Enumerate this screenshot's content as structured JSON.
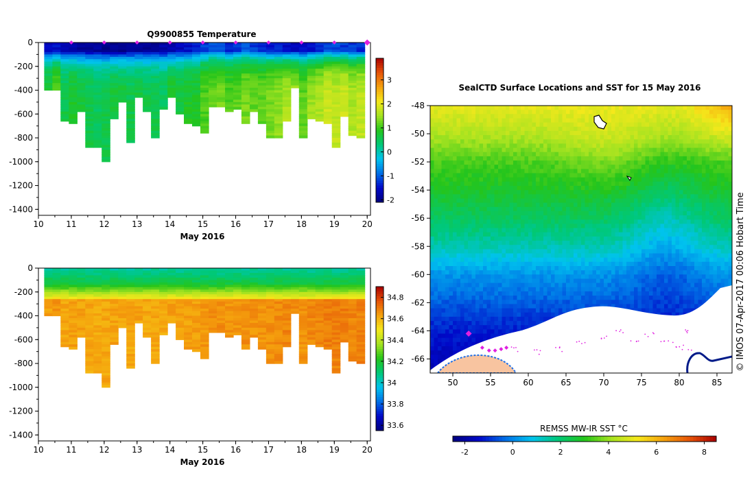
{
  "chart_data": [
    {
      "type": "heatmap",
      "id": "temperature-section",
      "title": "Q9900855  Temperature",
      "xlabel": "May 2016",
      "ylabel": "",
      "xlim": [
        10,
        20.1
      ],
      "ylim": [
        -1450,
        0
      ],
      "xticks": [
        "10",
        "11",
        "12",
        "13",
        "14",
        "15",
        "16",
        "17",
        "18",
        "19",
        "20"
      ],
      "yticks": [
        "0",
        "-200",
        "-400",
        "-600",
        "-800",
        "-1000",
        "-1200",
        "-1400"
      ],
      "profile_markers": [
        11,
        12,
        13,
        14,
        15,
        16,
        17,
        18,
        19,
        20
      ],
      "colorbar": {
        "min": -2.1,
        "max": 3.9,
        "ticks": [
          "3",
          "2",
          "1",
          "0",
          "-1",
          "-2"
        ],
        "colors": [
          "#00007f",
          "#0008c8",
          "#006fe6",
          "#00c3ee",
          "#00c878",
          "#25c51b",
          "#a5e320",
          "#f5e81b",
          "#f5a20d",
          "#e65308",
          "#a80000"
        ]
      },
      "profiles": [
        {
          "t": 10.3,
          "max_depth": 400,
          "surface_value": -1.6,
          "deep_value": 0.8
        },
        {
          "t": 10.55,
          "max_depth": 400,
          "surface_value": -1.5,
          "deep_value": 1.2
        },
        {
          "t": 10.8,
          "max_depth": 650,
          "surface_value": -1.7,
          "deep_value": 0.6
        },
        {
          "t": 11.05,
          "max_depth": 680,
          "surface_value": -1.8,
          "deep_value": 0.8
        },
        {
          "t": 11.3,
          "max_depth": 580,
          "surface_value": -1.9,
          "deep_value": 0.7
        },
        {
          "t": 11.55,
          "max_depth": 880,
          "surface_value": -1.9,
          "deep_value": 0.6
        },
        {
          "t": 11.8,
          "max_depth": 880,
          "surface_value": -1.9,
          "deep_value": 0.5
        },
        {
          "t": 12.05,
          "max_depth": 990,
          "surface_value": -2.0,
          "deep_value": 0.6
        },
        {
          "t": 12.3,
          "max_depth": 640,
          "surface_value": -2.0,
          "deep_value": 0.7
        },
        {
          "t": 12.55,
          "max_depth": 500,
          "surface_value": -2.0,
          "deep_value": 0.7
        },
        {
          "t": 12.8,
          "max_depth": 840,
          "surface_value": -1.9,
          "deep_value": 0.6
        },
        {
          "t": 13.05,
          "max_depth": 460,
          "surface_value": -1.9,
          "deep_value": 0.7
        },
        {
          "t": 13.3,
          "max_depth": 580,
          "surface_value": -1.9,
          "deep_value": 0.6
        },
        {
          "t": 13.55,
          "max_depth": 790,
          "surface_value": -1.9,
          "deep_value": 0.6
        },
        {
          "t": 13.8,
          "max_depth": 560,
          "surface_value": -1.8,
          "deep_value": 0.5
        },
        {
          "t": 14.05,
          "max_depth": 450,
          "surface_value": -1.7,
          "deep_value": 0.8
        },
        {
          "t": 14.3,
          "max_depth": 600,
          "surface_value": -1.6,
          "deep_value": 0.7
        },
        {
          "t": 14.55,
          "max_depth": 670,
          "surface_value": -1.5,
          "deep_value": 0.8
        },
        {
          "t": 14.8,
          "max_depth": 700,
          "surface_value": -1.4,
          "deep_value": 0.8
        },
        {
          "t": 15.05,
          "max_depth": 750,
          "surface_value": -1.2,
          "deep_value": 1.1
        },
        {
          "t": 15.3,
          "max_depth": 540,
          "surface_value": -1.1,
          "deep_value": 1.2
        },
        {
          "t": 15.55,
          "max_depth": 540,
          "surface_value": -1.1,
          "deep_value": 1.3
        },
        {
          "t": 15.8,
          "max_depth": 580,
          "surface_value": -1.3,
          "deep_value": 1.1
        },
        {
          "t": 16.05,
          "max_depth": 560,
          "surface_value": -1.2,
          "deep_value": 1.2
        },
        {
          "t": 16.3,
          "max_depth": 680,
          "surface_value": -1.0,
          "deep_value": 1.3
        },
        {
          "t": 16.55,
          "max_depth": 580,
          "surface_value": -1.2,
          "deep_value": 1.2
        },
        {
          "t": 16.8,
          "max_depth": 680,
          "surface_value": -1.3,
          "deep_value": 1.2
        },
        {
          "t": 17.05,
          "max_depth": 800,
          "surface_value": -1.4,
          "deep_value": 1.3
        },
        {
          "t": 17.3,
          "max_depth": 800,
          "surface_value": -1.4,
          "deep_value": 1.4
        },
        {
          "t": 17.55,
          "max_depth": 650,
          "surface_value": -1.5,
          "deep_value": 1.6
        },
        {
          "t": 17.8,
          "max_depth": 370,
          "surface_value": -1.6,
          "deep_value": 1.5
        },
        {
          "t": 18.05,
          "max_depth": 800,
          "surface_value": -1.5,
          "deep_value": 1.2
        },
        {
          "t": 18.3,
          "max_depth": 640,
          "surface_value": -1.5,
          "deep_value": 1.5
        },
        {
          "t": 18.55,
          "max_depth": 660,
          "surface_value": -1.3,
          "deep_value": 1.6
        },
        {
          "t": 18.8,
          "max_depth": 680,
          "surface_value": -1.1,
          "deep_value": 1.8
        },
        {
          "t": 19.05,
          "max_depth": 880,
          "surface_value": -1.1,
          "deep_value": 1.7
        },
        {
          "t": 19.3,
          "max_depth": 620,
          "surface_value": -1.2,
          "deep_value": 1.8
        },
        {
          "t": 19.55,
          "max_depth": 780,
          "surface_value": -1.2,
          "deep_value": 1.6
        },
        {
          "t": 19.8,
          "max_depth": 790,
          "surface_value": -1.3,
          "deep_value": 1.7
        }
      ]
    },
    {
      "type": "heatmap",
      "id": "salinity-section",
      "title": "",
      "xlabel": "May 2016",
      "ylabel": "",
      "xlim": [
        10,
        20.1
      ],
      "ylim": [
        -1450,
        0
      ],
      "xticks": [
        "10",
        "11",
        "12",
        "13",
        "14",
        "15",
        "16",
        "17",
        "18",
        "19",
        "20"
      ],
      "yticks": [
        "0",
        "-200",
        "-400",
        "-600",
        "-800",
        "-1000",
        "-1200",
        "-1400"
      ],
      "colorbar": {
        "min": 33.55,
        "max": 34.9,
        "ticks": [
          "34.8",
          "34.6",
          "34.4",
          "34.2",
          "34",
          "33.8",
          "33.6"
        ],
        "colors": [
          "#00007f",
          "#0008c8",
          "#006fe6",
          "#00c3ee",
          "#00c878",
          "#25c51b",
          "#a5e320",
          "#f5e81b",
          "#f5a20d",
          "#e65308",
          "#a80000"
        ]
      },
      "profiles_from": "temperature-section",
      "surface_value": 34.05,
      "mid_value": 34.35,
      "deep_value": 34.7
    },
    {
      "type": "heatmap",
      "id": "sst-map",
      "title": "SealCTD Surface Locations and SST for 15 May 2016",
      "xlabel": "",
      "ylabel": "",
      "xlim": [
        47,
        87
      ],
      "ylim": [
        -67,
        -48
      ],
      "xticks": [
        "50",
        "55",
        "60",
        "65",
        "70",
        "75",
        "80",
        "85"
      ],
      "yticks": [
        "-48",
        "-50",
        "-52",
        "-54",
        "-56",
        "-58",
        "-60",
        "-62",
        "-64",
        "-66"
      ],
      "colorbar": {
        "label": "REMSS MW-IR SST °C",
        "min": -2.5,
        "max": 8.5,
        "ticks": [
          "-2",
          "0",
          "2",
          "4",
          "6",
          "8"
        ],
        "colors": [
          "#00007f",
          "#0008c8",
          "#006fe6",
          "#00c3ee",
          "#00c878",
          "#25c51b",
          "#a5e320",
          "#f5e81b",
          "#f5a20d",
          "#e65308",
          "#a80000"
        ]
      },
      "sst_by_latitude": [
        {
          "lat": -48,
          "sst": 5.0
        },
        {
          "lat": -50,
          "sst": 4.3
        },
        {
          "lat": -52,
          "sst": 3.3
        },
        {
          "lat": -54,
          "sst": 2.8
        },
        {
          "lat": -56,
          "sst": 2.2
        },
        {
          "lat": -58,
          "sst": 1.4
        },
        {
          "lat": -60,
          "sst": 0.2
        },
        {
          "lat": -62,
          "sst": -0.5
        },
        {
          "lat": -64,
          "sst": -1.2
        },
        {
          "lat": -66,
          "sst": -1.6
        }
      ],
      "seal_positions": [
        {
          "lon": 52.1,
          "lat": -64.2
        },
        {
          "lon": 53.9,
          "lat": -65.2
        },
        {
          "lon": 54.8,
          "lat": -65.4
        },
        {
          "lon": 55.6,
          "lat": -65.4
        },
        {
          "lon": 56.4,
          "lat": -65.3
        },
        {
          "lon": 57.1,
          "lat": -65.2
        }
      ],
      "track_positions": [
        {
          "lon": 58,
          "lat": -65.3
        },
        {
          "lon": 61,
          "lat": -65.5
        },
        {
          "lon": 64,
          "lat": -65.3
        },
        {
          "lon": 67,
          "lat": -64.9
        },
        {
          "lon": 70,
          "lat": -64.4
        },
        {
          "lon": 72,
          "lat": -64.0
        },
        {
          "lon": 74,
          "lat": -64.6
        },
        {
          "lon": 76,
          "lat": -64.3
        },
        {
          "lon": 78,
          "lat": -64.6
        },
        {
          "lon": 79.5,
          "lat": -65.0
        },
        {
          "lon": 80.5,
          "lat": -64.0
        },
        {
          "lon": 81,
          "lat": -65.2
        }
      ],
      "side_text": "© IMOS 07-Apr-2017 00:06 Hobart Time"
    }
  ]
}
